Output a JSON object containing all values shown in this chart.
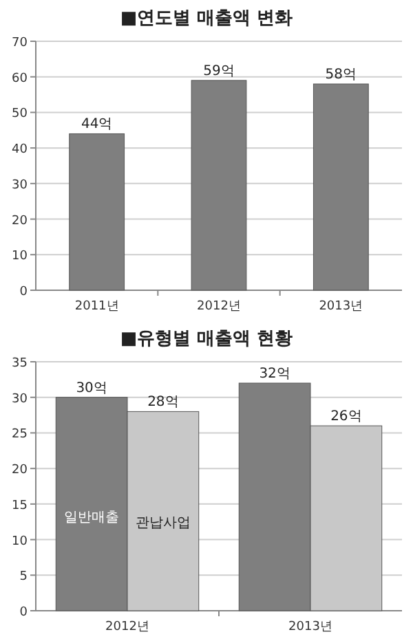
{
  "chart_data": [
    {
      "type": "bar",
      "title": "■연도별 매출액 변화",
      "categories": [
        "2011년",
        "2012년",
        "2013년"
      ],
      "ylim": [
        0,
        70
      ],
      "yticks": [
        0,
        10,
        20,
        30,
        40,
        50,
        60,
        70
      ],
      "grid": "y",
      "series": [
        {
          "color": "#7f7f7f",
          "values": [
            44,
            59,
            58
          ],
          "value_labels": [
            "44억",
            "59억",
            "58억"
          ]
        }
      ]
    },
    {
      "type": "bar",
      "title": "■유형별 매출액 현황",
      "categories": [
        "2012년",
        "2013년"
      ],
      "ylim": [
        0,
        35
      ],
      "yticks": [
        0,
        5,
        10,
        15,
        20,
        25,
        30,
        35
      ],
      "grid": "y",
      "series": [
        {
          "name": "일반매출",
          "color": "#7f7f7f",
          "values": [
            30,
            32
          ],
          "value_labels": [
            "30억",
            "32억"
          ]
        },
        {
          "name": "관납사업",
          "color": "#c8c8c8",
          "values": [
            28,
            26
          ],
          "value_labels": [
            "28억",
            "26억"
          ]
        }
      ]
    }
  ]
}
